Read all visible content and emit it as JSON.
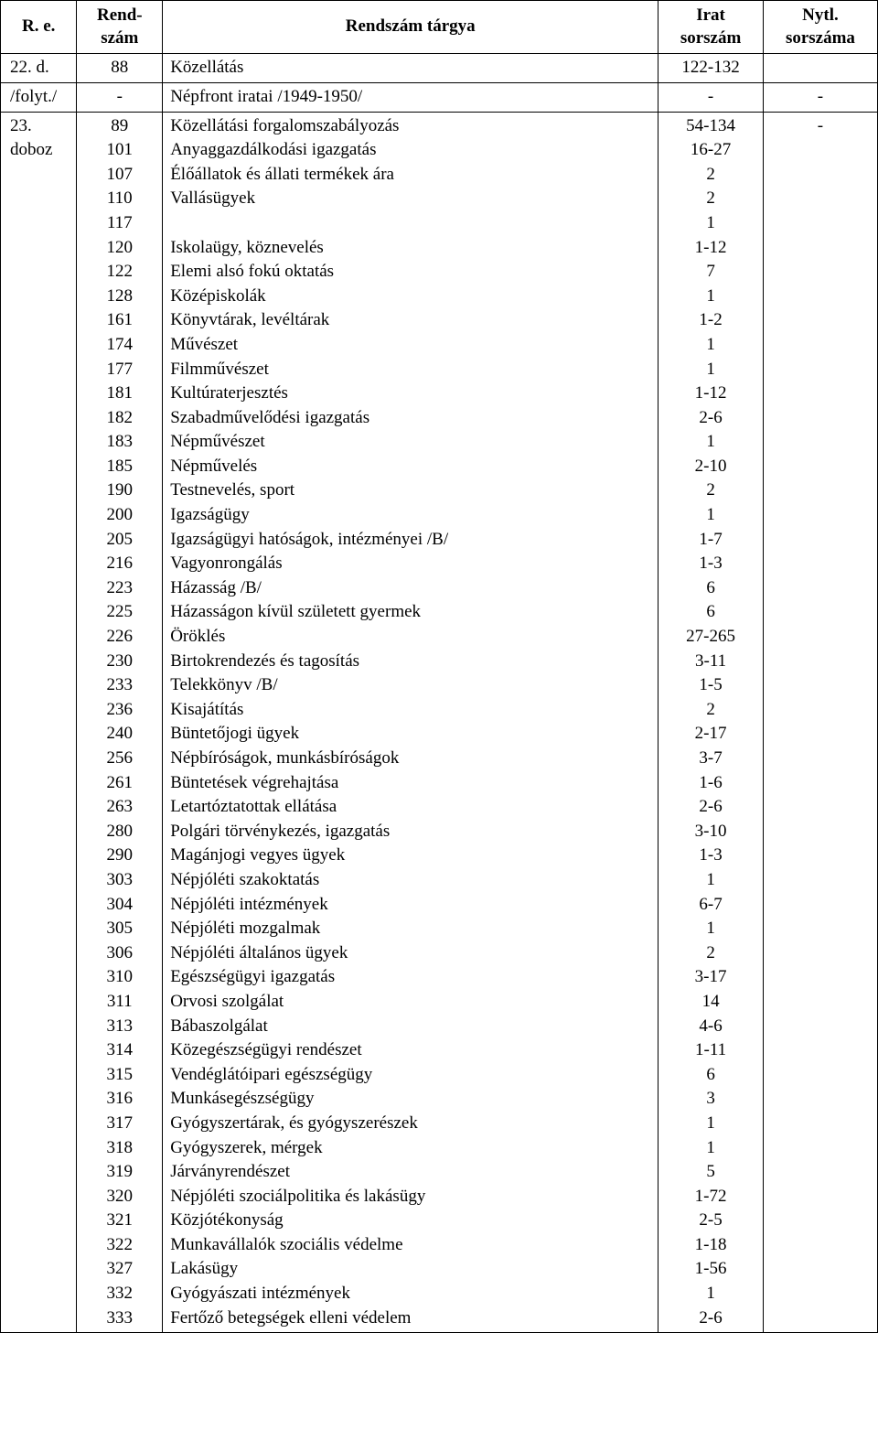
{
  "headers": {
    "re": "R. e.",
    "rendszam": "Rend-\nszám",
    "targy": "Rendszám tárgya",
    "irat": "Irat\nsorszám",
    "nytl": "Nytl.\nsorszáma"
  },
  "row1": {
    "re": "22. d.",
    "rend": "88",
    "targy": "Közellátás",
    "irat": "122-132",
    "nytl": ""
  },
  "row2": {
    "re": "/folyt./",
    "rend": "-",
    "targy": "Népfront iratai /1949-1950/",
    "irat": "-",
    "nytl": "-"
  },
  "row3": {
    "re": "23.\ndoboz",
    "nytl": "-",
    "items": [
      {
        "rend": "89",
        "targy": "Közellátási forgalomszabályozás",
        "irat": "54-134"
      },
      {
        "rend": "101",
        "targy": "Anyaggazdálkodási igazgatás",
        "irat": "16-27"
      },
      {
        "rend": "107",
        "targy": "Élőállatok és állati termékek ára",
        "irat": "2"
      },
      {
        "rend": "110",
        "targy": "Vallásügyek",
        "irat": "2"
      },
      {
        "rend": "117",
        "targy": "",
        "irat": "1"
      },
      {
        "rend": "120",
        "targy": "Iskolaügy, köznevelés",
        "irat": "1-12"
      },
      {
        "rend": "122",
        "targy": "Elemi alsó fokú oktatás",
        "irat": "7"
      },
      {
        "rend": "128",
        "targy": "Középiskolák",
        "irat": "1"
      },
      {
        "rend": "161",
        "targy": "Könyvtárak, levéltárak",
        "irat": "1-2"
      },
      {
        "rend": "174",
        "targy": "Művészet",
        "irat": "1"
      },
      {
        "rend": "177",
        "targy": "Filmművészet",
        "irat": "1"
      },
      {
        "rend": "181",
        "targy": "Kultúraterjesztés",
        "irat": "1-12"
      },
      {
        "rend": "182",
        "targy": "Szabadművelődési igazgatás",
        "irat": "2-6"
      },
      {
        "rend": "183",
        "targy": "Népművészet",
        "irat": "1"
      },
      {
        "rend": "185",
        "targy": "Népművelés",
        "irat": "2-10"
      },
      {
        "rend": "190",
        "targy": "Testnevelés, sport",
        "irat": "2"
      },
      {
        "rend": "200",
        "targy": "Igazságügy",
        "irat": "1"
      },
      {
        "rend": "205",
        "targy": "Igazságügyi hatóságok, intézményei /B/",
        "irat": "1-7"
      },
      {
        "rend": "216",
        "targy": "Vagyonrongálás",
        "irat": "1-3"
      },
      {
        "rend": "223",
        "targy": "Házasság /B/",
        "irat": "6"
      },
      {
        "rend": "225",
        "targy": "Házasságon kívül született gyermek",
        "irat": "6"
      },
      {
        "rend": "226",
        "targy": "Öröklés",
        "irat": "27-265"
      },
      {
        "rend": "230",
        "targy": "Birtokrendezés és tagosítás",
        "irat": "3-11"
      },
      {
        "rend": "233",
        "targy": "Telekkönyv /B/",
        "irat": "1-5"
      },
      {
        "rend": "236",
        "targy": "Kisajátítás",
        "irat": "2"
      },
      {
        "rend": "240",
        "targy": "Büntetőjogi ügyek",
        "irat": "2-17"
      },
      {
        "rend": "256",
        "targy": "Népbíróságok, munkásbíróságok",
        "irat": "3-7"
      },
      {
        "rend": "261",
        "targy": "Büntetések végrehajtása",
        "irat": "1-6"
      },
      {
        "rend": "263",
        "targy": "Letartóztatottak ellátása",
        "irat": "2-6"
      },
      {
        "rend": "280",
        "targy": "Polgári törvénykezés, igazgatás",
        "irat": "3-10"
      },
      {
        "rend": "290",
        "targy": "Magánjogi vegyes ügyek",
        "irat": "1-3"
      },
      {
        "rend": "303",
        "targy": "Népjóléti szakoktatás",
        "irat": "1"
      },
      {
        "rend": "304",
        "targy": "Népjóléti intézmények",
        "irat": "6-7"
      },
      {
        "rend": "305",
        "targy": "Népjóléti mozgalmak",
        "irat": "1"
      },
      {
        "rend": "306",
        "targy": "Népjóléti általános ügyek",
        "irat": "2"
      },
      {
        "rend": "310",
        "targy": "Egészségügyi igazgatás",
        "irat": "3-17"
      },
      {
        "rend": "311",
        "targy": "Orvosi szolgálat",
        "irat": "14"
      },
      {
        "rend": "313",
        "targy": "Bábaszolgálat",
        "irat": "4-6"
      },
      {
        "rend": "314",
        "targy": "Közegészségügyi rendészet",
        "irat": "1-11"
      },
      {
        "rend": "315",
        "targy": "Vendéglátóipari egészségügy",
        "irat": "6"
      },
      {
        "rend": "316",
        "targy": "Munkásegészségügy",
        "irat": "3"
      },
      {
        "rend": "317",
        "targy": "Gyógyszertárak, és gyógyszerészek",
        "irat": "1"
      },
      {
        "rend": "318",
        "targy": "Gyógyszerek, mérgek",
        "irat": "1"
      },
      {
        "rend": "319",
        "targy": "Járványrendészet",
        "irat": "5"
      },
      {
        "rend": "320",
        "targy": "Népjóléti szociálpolitika és lakásügy",
        "irat": "1-72"
      },
      {
        "rend": "321",
        "targy": "Közjótékonyság",
        "irat": "2-5"
      },
      {
        "rend": "322",
        "targy": "Munkavállalók szociális védelme",
        "irat": "1-18"
      },
      {
        "rend": "327",
        "targy": "Lakásügy",
        "irat": "1-56"
      },
      {
        "rend": "332",
        "targy": "Gyógyászati intézmények",
        "irat": "1"
      },
      {
        "rend": "333",
        "targy": "Fertőző betegségek elleni védelem",
        "irat": "2-6"
      }
    ]
  }
}
